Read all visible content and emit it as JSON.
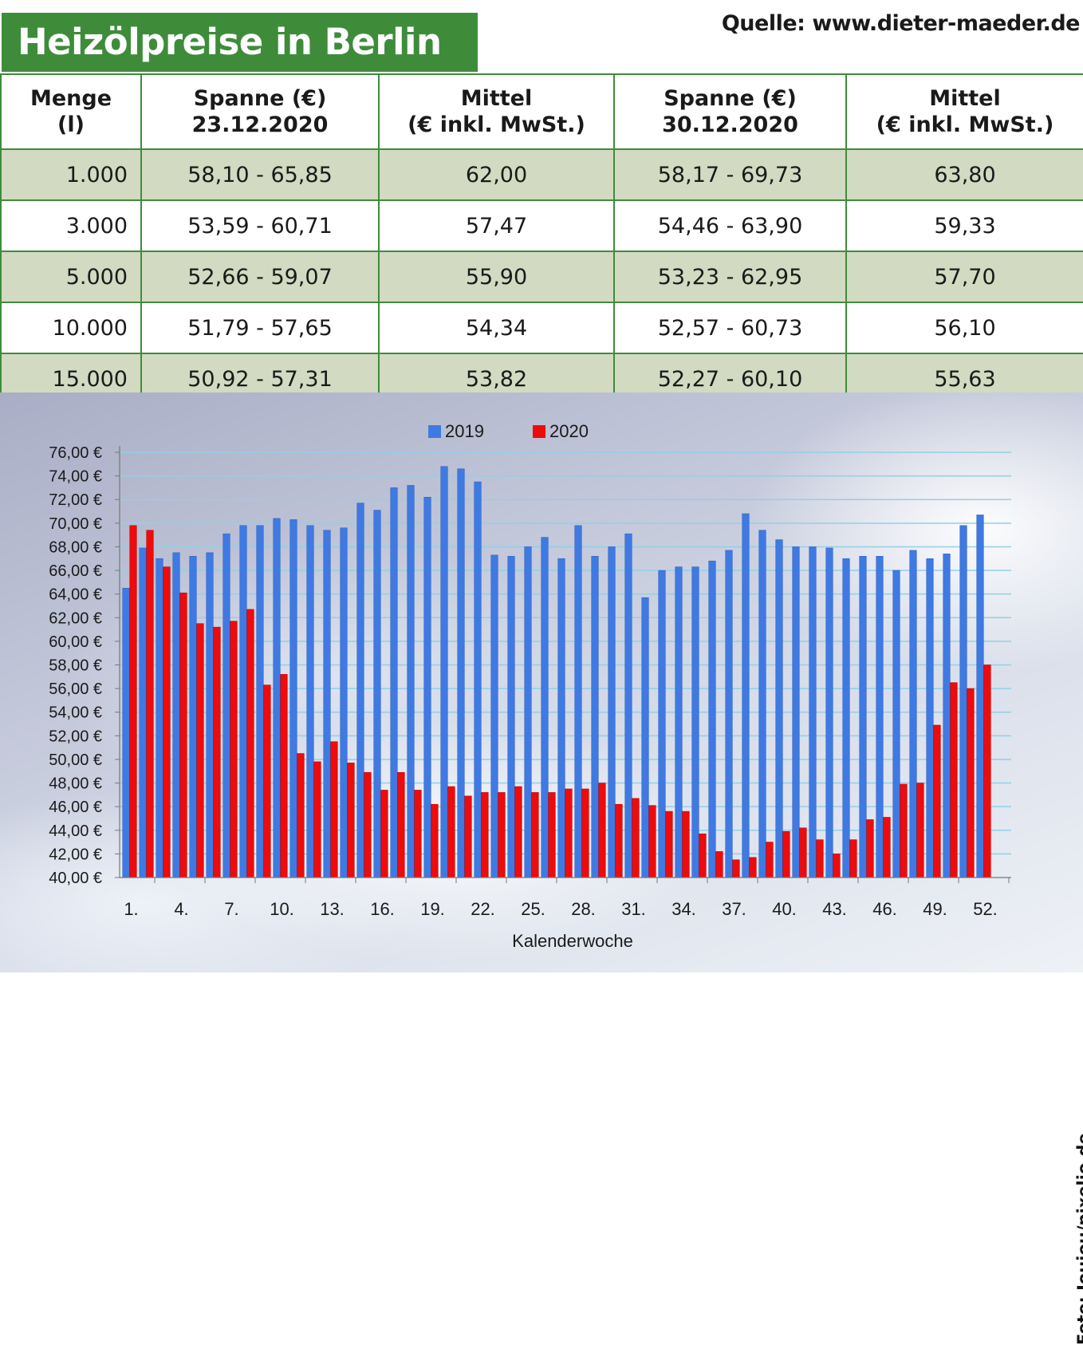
{
  "header": {
    "title": "Heizölpreise in Berlin",
    "source": "Quelle: www.dieter-maeder.de"
  },
  "table": {
    "headers": [
      {
        "line1": "Menge",
        "line2": "(l)"
      },
      {
        "line1": "Spanne (€)",
        "line2": "23.12.2020"
      },
      {
        "line1": "Mittel",
        "line2": "(€ inkl. MwSt.)"
      },
      {
        "line1": "Spanne (€)",
        "line2": "30.12.2020"
      },
      {
        "line1": "Mittel",
        "line2": "(€ inkl. MwSt.)"
      }
    ],
    "rows": [
      [
        "1.000",
        "58,10 - 65,85",
        "62,00",
        "58,17 - 69,73",
        "63,80"
      ],
      [
        "3.000",
        "53,59 - 60,71",
        "57,47",
        "54,46 - 63,90",
        "59,33"
      ],
      [
        "5.000",
        "52,66 - 59,07",
        "55,90",
        "53,23 - 62,95",
        "57,70"
      ],
      [
        "10.000",
        "51,79 - 57,65",
        "54,34",
        "52,57 - 60,73",
        "56,10"
      ],
      [
        "15.000",
        "50,92 - 57,31",
        "53,82",
        "52,27 - 60,10",
        "55,63"
      ]
    ]
  },
  "photo_credit": "Foto: Joujou/pixelio.de",
  "colors": {
    "title_bg": "#3e8c3a",
    "row_alt": "#d2dac1",
    "series_2019": "#3f7ae3",
    "series_2020": "#ee0b0b"
  },
  "chart_data": {
    "type": "bar",
    "xlabel": "Kalenderwoche",
    "ylabel": "",
    "ylim": [
      40,
      76
    ],
    "y_ticks": [
      40,
      42,
      44,
      46,
      48,
      50,
      52,
      54,
      56,
      58,
      60,
      62,
      64,
      66,
      68,
      70,
      72,
      74,
      76
    ],
    "y_tick_labels": [
      "40,00 €",
      "42,00 €",
      "44,00 €",
      "46,00 €",
      "48,00 €",
      "50,00 €",
      "52,00 €",
      "54,00 €",
      "56,00 €",
      "58,00 €",
      "60,00 €",
      "62,00 €",
      "64,00 €",
      "66,00 €",
      "68,00 €",
      "70,00 €",
      "72,00 €",
      "74,00 €",
      "76,00 €"
    ],
    "x_tick_weeks": [
      1,
      4,
      7,
      10,
      13,
      16,
      19,
      22,
      25,
      28,
      31,
      34,
      37,
      40,
      43,
      46,
      49,
      52
    ],
    "x_tick_labels": [
      "1.",
      "4.",
      "7.",
      "10.",
      "13.",
      "16.",
      "19.",
      "22.",
      "25.",
      "28.",
      "31.",
      "34.",
      "37.",
      "40.",
      "43.",
      "46.",
      "49.",
      "52."
    ],
    "grid": "horizontal",
    "legend_position": "top-center",
    "categories": [
      1,
      2,
      3,
      4,
      5,
      6,
      7,
      8,
      9,
      10,
      11,
      12,
      13,
      14,
      15,
      16,
      17,
      18,
      19,
      20,
      21,
      22,
      23,
      24,
      25,
      26,
      27,
      28,
      29,
      30,
      31,
      32,
      33,
      34,
      35,
      36,
      37,
      38,
      39,
      40,
      41,
      42,
      43,
      44,
      45,
      46,
      47,
      48,
      49,
      50,
      51,
      52
    ],
    "series": [
      {
        "name": "2019",
        "values": [
          64.5,
          67.9,
          67.0,
          67.5,
          67.2,
          67.5,
          69.1,
          69.8,
          69.8,
          70.4,
          70.3,
          69.8,
          69.4,
          69.6,
          71.7,
          71.1,
          73.0,
          73.2,
          72.2,
          74.8,
          74.6,
          73.5,
          67.3,
          67.2,
          68.0,
          68.8,
          67.0,
          69.8,
          67.2,
          68.0,
          69.1,
          63.7,
          66.0,
          66.3,
          66.3,
          66.8,
          67.7,
          70.8,
          69.4,
          68.6,
          68.0,
          68.0,
          67.9,
          67.0,
          67.2,
          67.2,
          66.0,
          67.7,
          67.0,
          67.4,
          69.8,
          70.7
        ]
      },
      {
        "name": "2020",
        "values": [
          69.8,
          69.4,
          66.3,
          64.1,
          61.5,
          61.2,
          61.7,
          62.7,
          56.3,
          57.2,
          50.5,
          49.8,
          51.5,
          49.7,
          48.9,
          47.4,
          48.9,
          47.4,
          46.2,
          47.7,
          46.9,
          47.2,
          47.2,
          47.7,
          47.2,
          47.2,
          47.5,
          47.5,
          48.0,
          46.2,
          46.7,
          46.1,
          45.6,
          45.6,
          43.7,
          42.2,
          41.5,
          41.7,
          43.0,
          43.9,
          44.2,
          43.2,
          42.0,
          43.2,
          44.9,
          45.1,
          47.9,
          48.0,
          52.9,
          56.5,
          56.0,
          58.0
        ]
      }
    ]
  }
}
